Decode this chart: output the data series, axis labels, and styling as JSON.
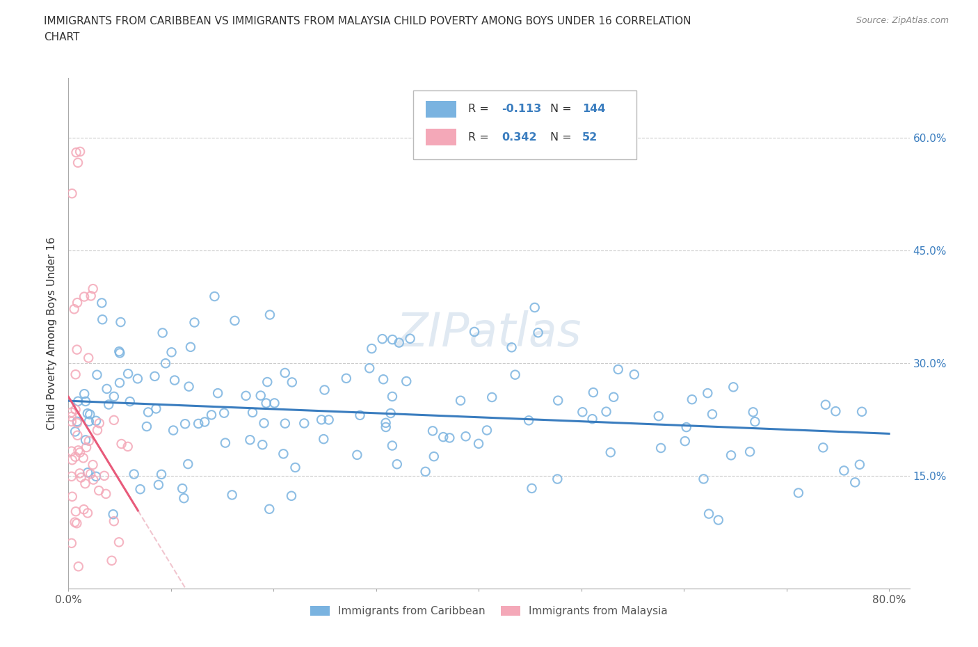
{
  "title_line1": "IMMIGRANTS FROM CARIBBEAN VS IMMIGRANTS FROM MALAYSIA CHILD POVERTY AMONG BOYS UNDER 16 CORRELATION",
  "title_line2": "CHART",
  "source_text": "Source: ZipAtlas.com",
  "ylabel": "Child Poverty Among Boys Under 16",
  "xlim": [
    0.0,
    0.82
  ],
  "ylim": [
    0.0,
    0.68
  ],
  "xticks": [
    0.0,
    0.1,
    0.2,
    0.3,
    0.4,
    0.5,
    0.6,
    0.7,
    0.8
  ],
  "xticklabels_show": [
    "0.0%",
    "80.0%"
  ],
  "yticks_right": [
    0.15,
    0.3,
    0.45,
    0.6
  ],
  "yticklabels_right": [
    "15.0%",
    "30.0%",
    "45.0%",
    "60.0%"
  ],
  "caribbean_color": "#7ab3e0",
  "malaysia_color": "#f4a8b8",
  "caribbean_R": -0.113,
  "caribbean_N": 144,
  "malaysia_R": 0.342,
  "malaysia_N": 52,
  "legend_R_color": "#3a7dbf",
  "watermark": "ZIPatlas",
  "legend_box_color": "#e8e8e8"
}
